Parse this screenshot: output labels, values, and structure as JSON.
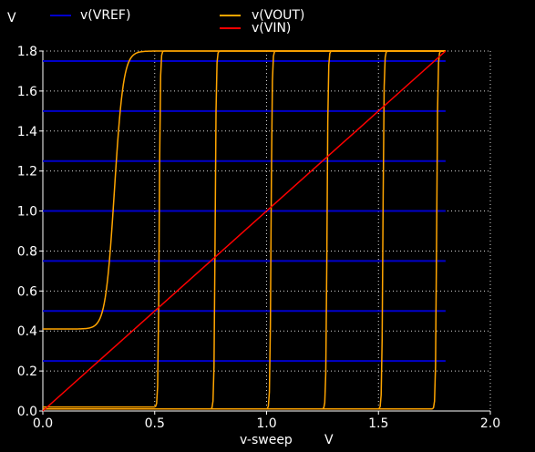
{
  "chart_data": {
    "type": "line",
    "ylabel_unit": "V",
    "xlabel": "v-sweep",
    "xlabel_unit": "V",
    "xlim": [
      0,
      2
    ],
    "ylim": [
      0,
      1.8
    ],
    "x_ticks": [
      "0.0",
      "0.5",
      "1.0",
      "1.5",
      "2.0"
    ],
    "y_ticks": [
      "0.0",
      "0.2",
      "0.4",
      "0.6",
      "0.8",
      "1.0",
      "1.2",
      "1.4",
      "1.6",
      "1.8"
    ],
    "grid": true,
    "legend_placement": "top",
    "legend": [
      {
        "name": "v(VREF)",
        "color": "#0000cc"
      },
      {
        "name": "v(VOUT)",
        "color": "#ffa500"
      },
      {
        "name": "v(VIN)",
        "color": "#ff0000"
      }
    ],
    "series": [
      {
        "name": "v(VREF)",
        "color": "#0000cc",
        "x_range": [
          0,
          1.8
        ],
        "levels": [
          0.25,
          0.5,
          0.75,
          1.0,
          1.25,
          1.5,
          1.75
        ]
      },
      {
        "name": "v(VIN)",
        "color": "#ff0000",
        "x": [
          0,
          1.8
        ],
        "y": [
          0,
          1.8
        ]
      },
      {
        "name": "v(VOUT)",
        "color": "#ffa500",
        "curves": [
          {
            "low": 0.41,
            "switch_x": 0.32,
            "high": 1.8
          },
          {
            "low": 0.02,
            "switch_x": 0.52,
            "high": 1.8
          },
          {
            "low": 0.01,
            "switch_x": 0.77,
            "high": 1.8
          },
          {
            "low": 0.01,
            "switch_x": 1.02,
            "high": 1.8
          },
          {
            "low": 0.01,
            "switch_x": 1.27,
            "high": 1.8
          },
          {
            "low": 0.01,
            "switch_x": 1.52,
            "high": 1.8
          },
          {
            "low": 0.01,
            "switch_x": 1.76,
            "high": 1.8
          }
        ]
      }
    ]
  }
}
